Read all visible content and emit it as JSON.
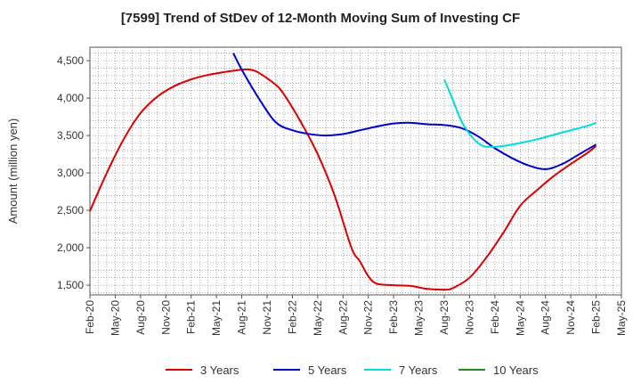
{
  "chart_data": {
    "type": "line",
    "title": "[7599]  Trend of StDev of 12-Month Moving Sum of Investing CF",
    "xlabel": "",
    "ylabel": "Amount (million yen)",
    "ylim": [
      1370,
      4680
    ],
    "yticks": [
      1500,
      2000,
      2500,
      3000,
      3500,
      4000,
      4500
    ],
    "ytick_labels": [
      "1,500",
      "2,000",
      "2,500",
      "3,000",
      "3,500",
      "4,000",
      "4,500"
    ],
    "xticks": [
      "2020-02",
      "2020-05",
      "2020-08",
      "2020-11",
      "2021-02",
      "2021-05",
      "2021-08",
      "2021-11",
      "2022-02",
      "2022-05",
      "2022-08",
      "2022-11",
      "2023-02",
      "2023-05",
      "2023-08",
      "2023-11",
      "2024-02",
      "2024-05",
      "2024-08",
      "2024-11",
      "2025-02",
      "2025-05"
    ],
    "xtick_labels": [
      "Feb-20",
      "May-20",
      "Aug-20",
      "Nov-20",
      "Feb-21",
      "May-21",
      "Aug-21",
      "Nov-21",
      "Feb-22",
      "May-22",
      "Aug-22",
      "Nov-22",
      "Feb-23",
      "May-23",
      "Aug-23",
      "Nov-23",
      "Feb-24",
      "May-24",
      "Aug-24",
      "Nov-24",
      "Feb-25",
      "May-25"
    ],
    "xlim": [
      "2020-02",
      "2025-05"
    ],
    "grid": true,
    "legend_position": "bottom",
    "series": [
      {
        "name": "3 Years",
        "color": "#dd0000",
        "points": [
          [
            "2020-02",
            2490
          ],
          [
            "2020-04",
            3000
          ],
          [
            "2020-06",
            3450
          ],
          [
            "2020-08",
            3800
          ],
          [
            "2020-10",
            4020
          ],
          [
            "2020-12",
            4160
          ],
          [
            "2021-02",
            4250
          ],
          [
            "2021-04",
            4310
          ],
          [
            "2021-06",
            4350
          ],
          [
            "2021-08",
            4380
          ],
          [
            "2021-09",
            4380
          ],
          [
            "2021-10",
            4340
          ],
          [
            "2021-12",
            4180
          ],
          [
            "2022-01",
            4050
          ],
          [
            "2022-03",
            3680
          ],
          [
            "2022-05",
            3250
          ],
          [
            "2022-07",
            2700
          ],
          [
            "2022-09",
            2000
          ],
          [
            "2022-10",
            1820
          ],
          [
            "2022-11",
            1620
          ],
          [
            "2022-12",
            1520
          ],
          [
            "2023-02",
            1500
          ],
          [
            "2023-04",
            1490
          ],
          [
            "2023-06",
            1450
          ],
          [
            "2023-08",
            1440
          ],
          [
            "2023-09",
            1460
          ],
          [
            "2023-11",
            1600
          ],
          [
            "2024-01",
            1870
          ],
          [
            "2024-03",
            2200
          ],
          [
            "2024-05",
            2560
          ],
          [
            "2024-07",
            2770
          ],
          [
            "2024-09",
            2960
          ],
          [
            "2024-11",
            3120
          ],
          [
            "2025-01",
            3270
          ],
          [
            "2025-02",
            3360
          ]
        ]
      },
      {
        "name": "5 Years",
        "color": "#0000cc",
        "points": [
          [
            "2021-07",
            4600
          ],
          [
            "2021-08",
            4380
          ],
          [
            "2021-10",
            4000
          ],
          [
            "2021-12",
            3680
          ],
          [
            "2022-02",
            3570
          ],
          [
            "2022-04",
            3520
          ],
          [
            "2022-06",
            3500
          ],
          [
            "2022-08",
            3520
          ],
          [
            "2022-10",
            3570
          ],
          [
            "2022-12",
            3620
          ],
          [
            "2023-02",
            3660
          ],
          [
            "2023-04",
            3670
          ],
          [
            "2023-06",
            3650
          ],
          [
            "2023-08",
            3640
          ],
          [
            "2023-10",
            3600
          ],
          [
            "2023-12",
            3490
          ],
          [
            "2024-02",
            3330
          ],
          [
            "2024-04",
            3200
          ],
          [
            "2024-06",
            3100
          ],
          [
            "2024-08",
            3050
          ],
          [
            "2024-10",
            3120
          ],
          [
            "2024-12",
            3250
          ],
          [
            "2025-02",
            3380
          ]
        ]
      },
      {
        "name": "7 Years",
        "color": "#00dddd",
        "points": [
          [
            "2023-08",
            4250
          ],
          [
            "2023-09",
            3980
          ],
          [
            "2023-10",
            3700
          ],
          [
            "2023-11",
            3520
          ],
          [
            "2023-12",
            3400
          ],
          [
            "2024-01",
            3350
          ],
          [
            "2024-03",
            3360
          ],
          [
            "2024-05",
            3400
          ],
          [
            "2024-07",
            3450
          ],
          [
            "2024-09",
            3510
          ],
          [
            "2024-11",
            3570
          ],
          [
            "2025-01",
            3630
          ],
          [
            "2025-02",
            3670
          ]
        ]
      },
      {
        "name": "10 Years",
        "color": "#228822",
        "points": []
      }
    ]
  }
}
